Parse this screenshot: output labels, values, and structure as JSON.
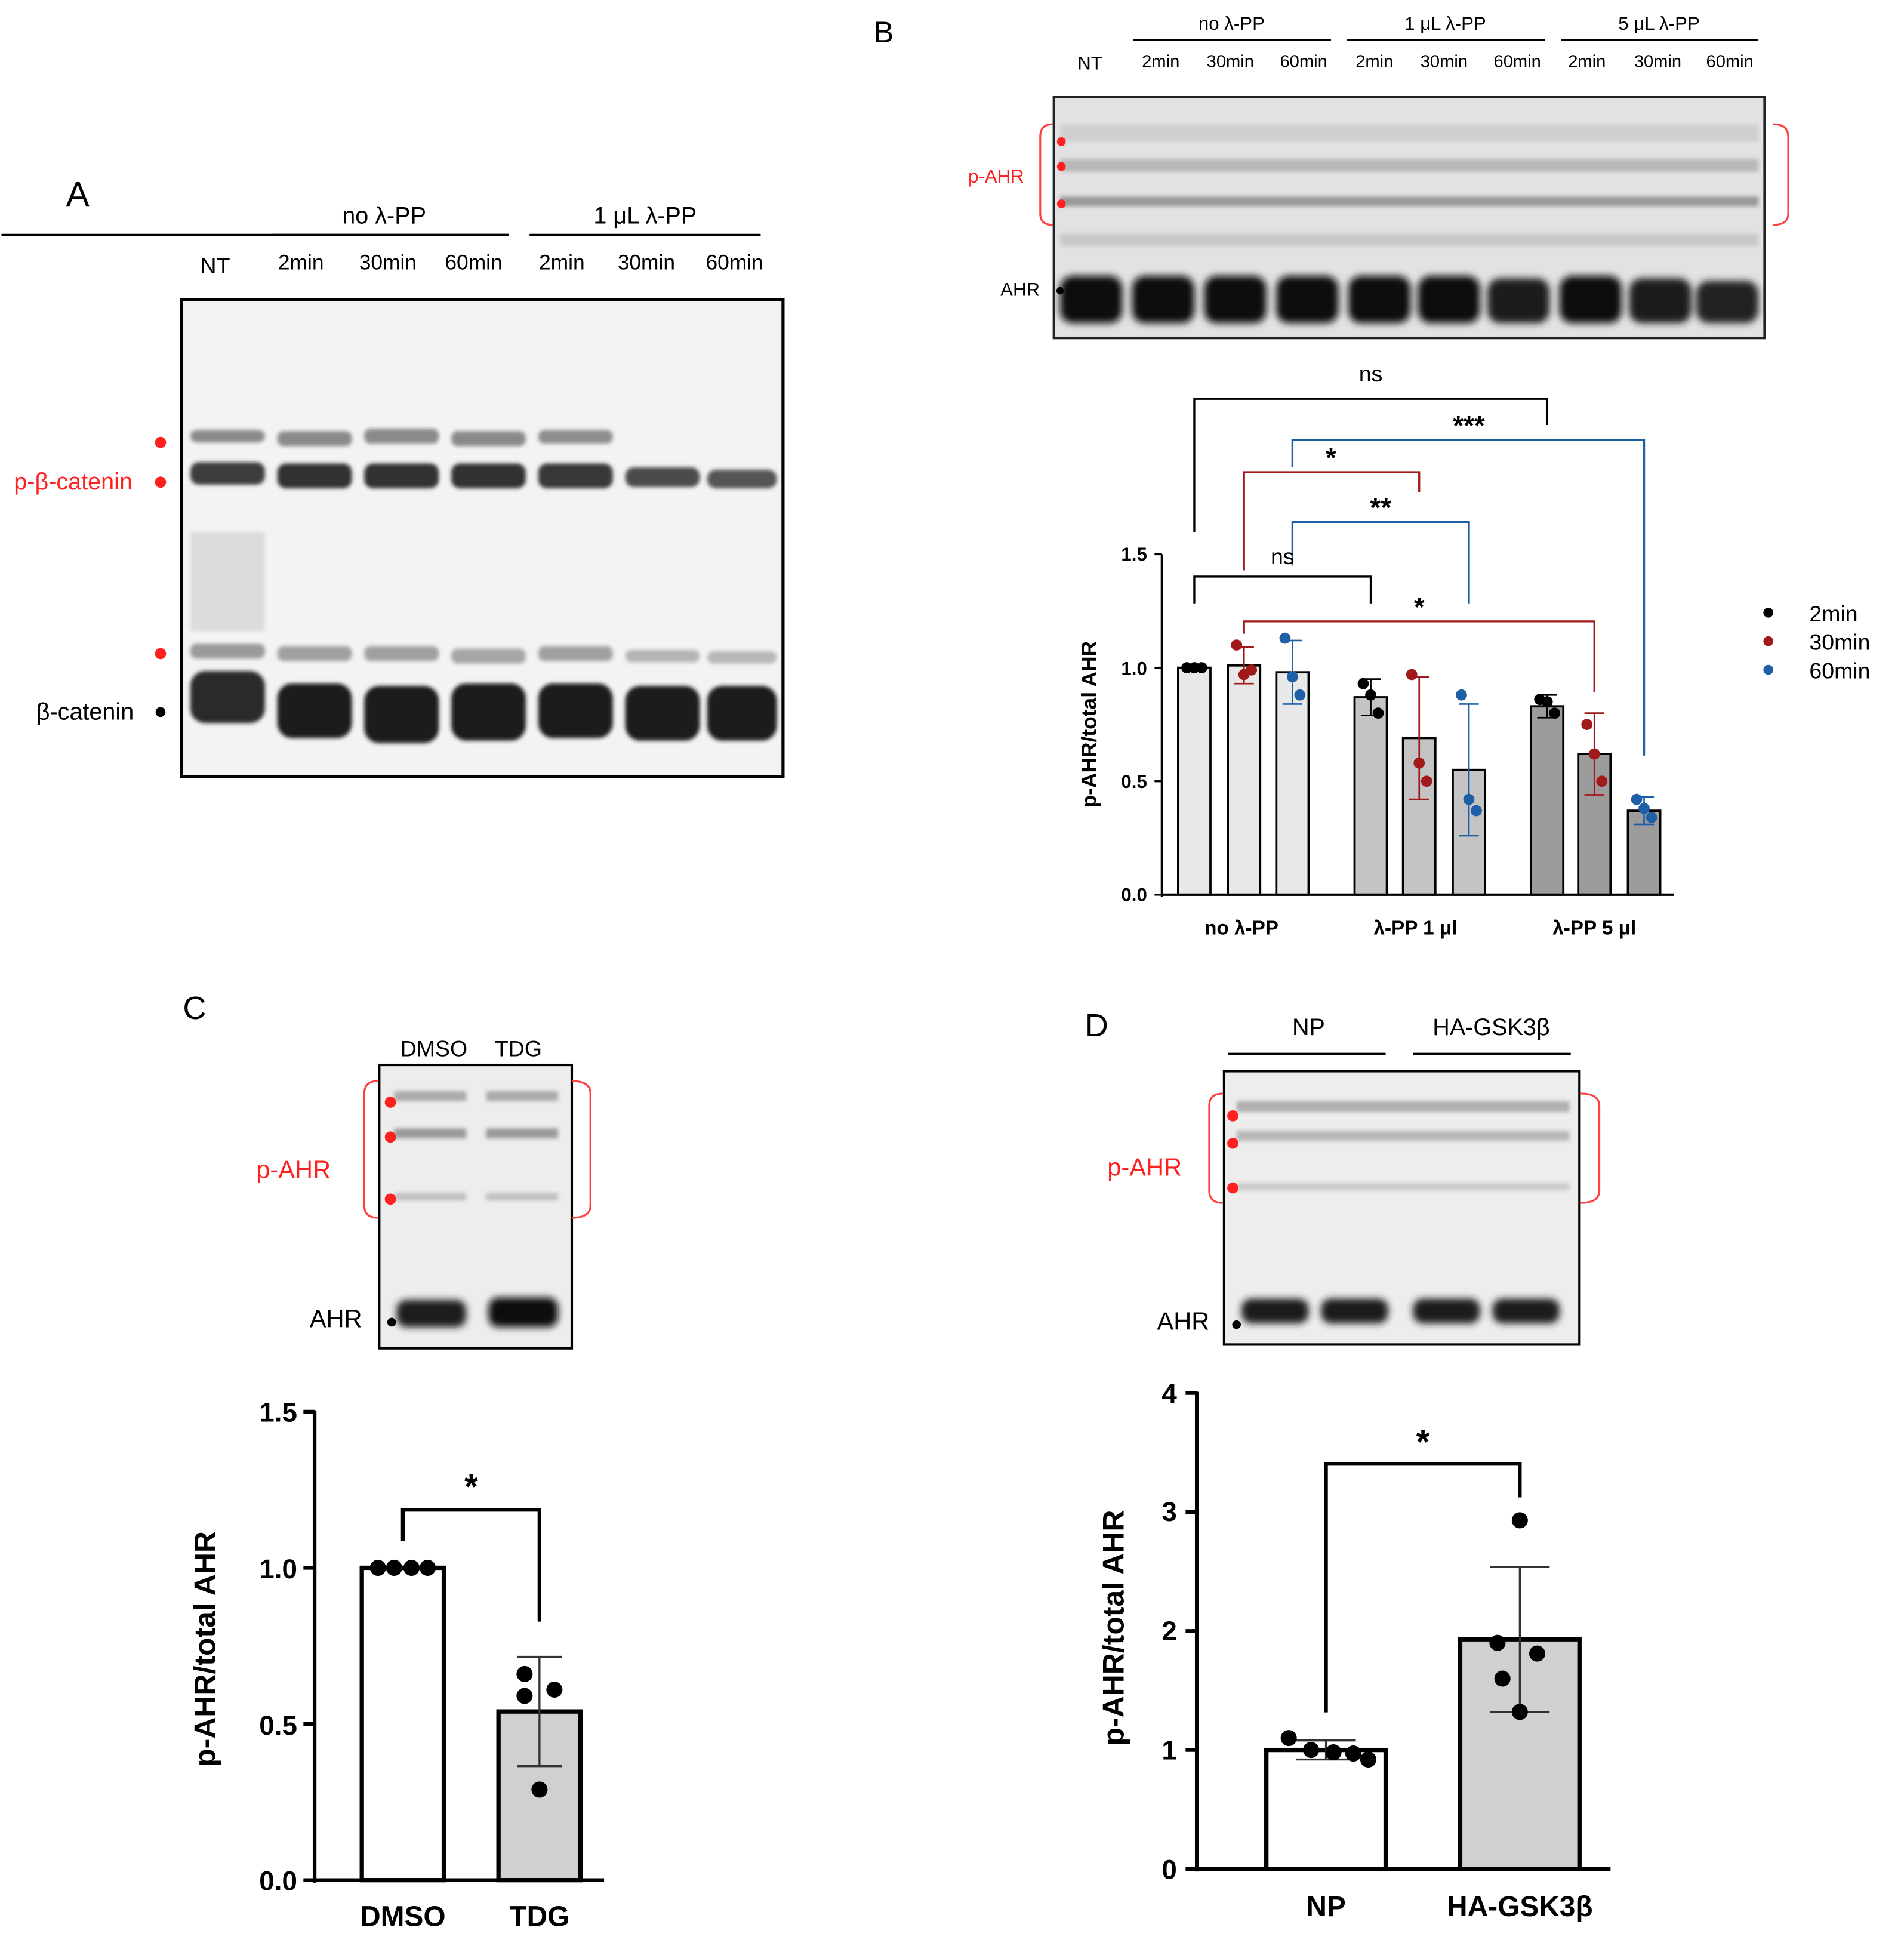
{
  "panels": {
    "a": {
      "letter": "A",
      "group_labels": [
        "no λ-PP",
        "1 μL λ-PP"
      ],
      "lane_labels": [
        "NT",
        "2min",
        "30min",
        "60min",
        "2min",
        "30min",
        "60min"
      ],
      "band_labels": {
        "phospho": "p-β-catenin",
        "total": "β-catenin"
      }
    },
    "b": {
      "letter": "B",
      "group_labels": [
        "no λ-PP",
        "1 μL λ-PP",
        "5 μL λ-PP"
      ],
      "lane_labels": [
        "NT",
        "2min",
        "30min",
        "60min",
        "2min",
        "30min",
        "60min",
        "2min",
        "30min",
        "60min"
      ],
      "band_labels": {
        "phospho": "p-AHR",
        "total": "AHR"
      }
    },
    "c": {
      "letter": "C",
      "lane_labels": [
        "DMSO",
        "TDG"
      ],
      "band_labels": {
        "phospho": "p-AHR",
        "total": "AHR"
      }
    },
    "d": {
      "letter": "D",
      "group_labels": [
        "NP",
        "HA-GSK3β"
      ],
      "band_labels": {
        "phospho": "p-AHR",
        "total": "AHR"
      }
    }
  },
  "colors": {
    "black": "#000000",
    "red": "#a01a1a",
    "blue": "#1f5fa8",
    "marker_red": "#ff2020"
  },
  "chart_data": [
    {
      "panel": "B",
      "type": "bar",
      "ylabel": "p-AHR/total AHR",
      "ylim": [
        0,
        1.5
      ],
      "yticks": [
        "0.0",
        "0.5",
        "1.0",
        "1.5"
      ],
      "categories": [
        "no λ-PP",
        "λ-PP 1 μl",
        "λ-PP 5 μl"
      ],
      "legend_position": "right",
      "series": [
        {
          "name": "2min",
          "values": [
            1.0,
            0.87,
            0.83
          ],
          "errors": [
            0.0,
            0.08,
            0.05
          ],
          "points": [
            [
              1.0,
              1.0,
              1.0
            ],
            [
              0.93,
              0.88,
              0.8
            ],
            [
              0.86,
              0.85,
              0.8
            ]
          ]
        },
        {
          "name": "30min",
          "values": [
            1.01,
            0.69,
            0.62
          ],
          "errors": [
            0.08,
            0.27,
            0.18
          ],
          "points": [
            [
              1.1,
              0.97,
              0.99
            ],
            [
              0.97,
              0.58,
              0.5
            ],
            [
              0.75,
              0.62,
              0.5
            ]
          ]
        },
        {
          "name": "60min",
          "values": [
            0.98,
            0.55,
            0.37
          ],
          "errors": [
            0.14,
            0.29,
            0.06
          ],
          "points": [
            [
              1.13,
              0.96,
              0.88
            ],
            [
              0.88,
              0.42,
              0.37
            ],
            [
              0.42,
              0.38,
              0.34
            ]
          ]
        }
      ],
      "significance": [
        "ns",
        "***",
        "*",
        "**",
        "ns",
        "*"
      ]
    },
    {
      "panel": "C",
      "type": "bar",
      "ylabel": "p-AHR/total AHR",
      "ylim": [
        0,
        1.5
      ],
      "yticks": [
        "0.0",
        "0.5",
        "1.0",
        "1.5"
      ],
      "categories": [
        "DMSO",
        "TDG"
      ],
      "values": [
        1.0,
        0.54
      ],
      "errors": [
        0.0,
        0.175
      ],
      "points": [
        [
          1.0,
          1.0,
          1.0,
          1.0
        ],
        [
          0.66,
          0.61,
          0.59,
          0.29
        ]
      ],
      "significance": [
        "*"
      ]
    },
    {
      "panel": "D",
      "type": "bar",
      "ylabel": "p-AHR/total AHR",
      "ylim": [
        0,
        4
      ],
      "yticks": [
        "0",
        "1",
        "2",
        "3",
        "4"
      ],
      "categories": [
        "NP",
        "HA-GSK3β"
      ],
      "values": [
        1.0,
        1.93
      ],
      "errors": [
        0.08,
        0.61
      ],
      "points": [
        [
          1.1,
          1.0,
          0.98,
          0.97,
          0.92
        ],
        [
          2.93,
          1.9,
          1.81,
          1.6,
          1.32
        ]
      ],
      "significance": [
        "*"
      ]
    }
  ]
}
